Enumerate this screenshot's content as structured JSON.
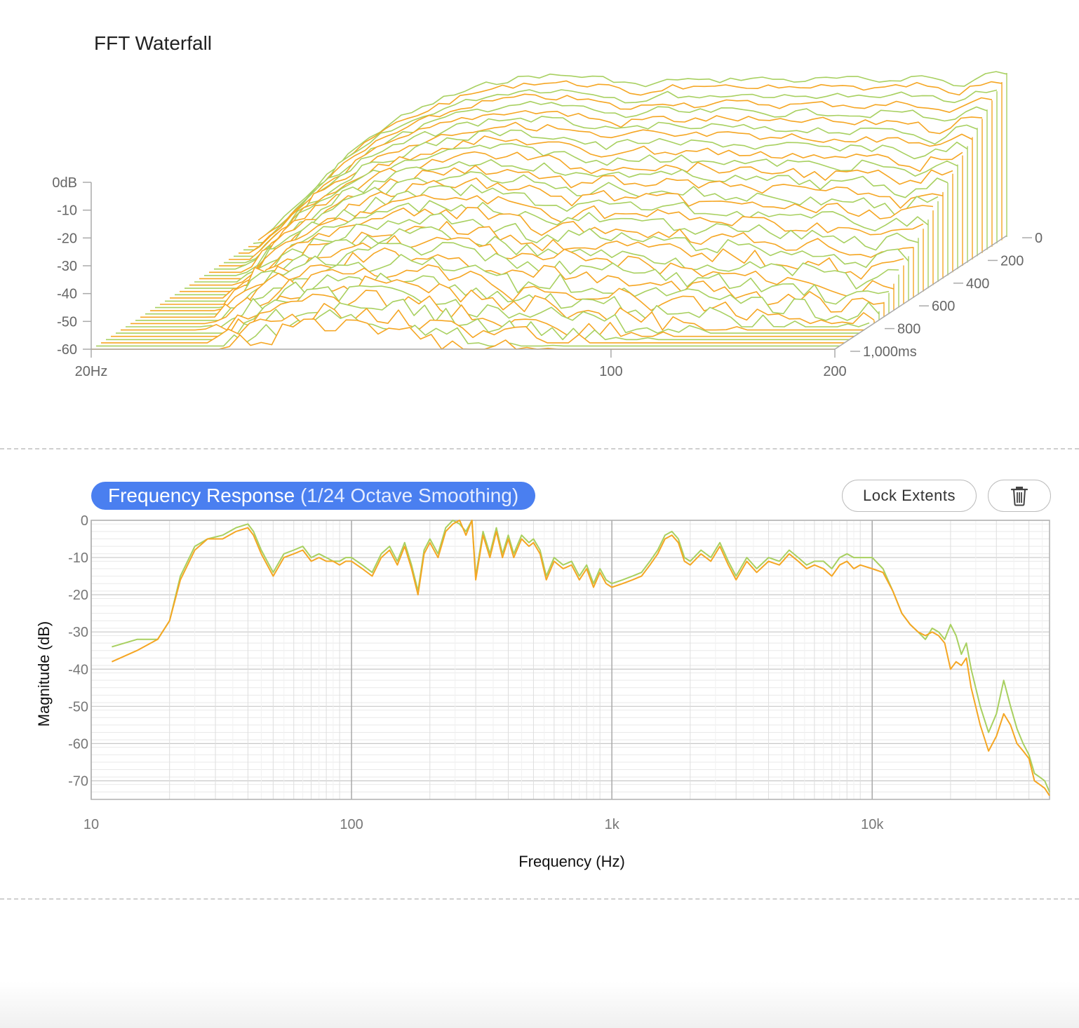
{
  "waterfall": {
    "title": "FFT Waterfall",
    "chart_data": {
      "type": "line",
      "title": "FFT Waterfall",
      "x_ticks": [
        "20Hz",
        "100",
        "200"
      ],
      "x_tick_values": [
        20,
        100,
        200
      ],
      "y_ticks": [
        "0dB",
        "-10",
        "-20",
        "-30",
        "-40",
        "-50",
        "-60"
      ],
      "y_tick_values": [
        0,
        -10,
        -20,
        -30,
        -40,
        -50,
        -60
      ],
      "z_ticks": [
        "0",
        "200",
        "400",
        "600",
        "800",
        "1,000ms"
      ],
      "z_tick_values": [
        0,
        200,
        400,
        600,
        800,
        1000
      ],
      "xlim": [
        20,
        200
      ],
      "ylim": [
        -60,
        0
      ],
      "zlim": [
        0,
        1000
      ],
      "slice_count": 36,
      "colors": [
        "#f5a623",
        "#a8d060"
      ],
      "base_spectrum": {
        "x": [
          20,
          23,
          26,
          30,
          35,
          40,
          46,
          52,
          58,
          65,
          72,
          80,
          88,
          96,
          105,
          115,
          125,
          135,
          145,
          155,
          165,
          175,
          185,
          192,
          196,
          200
        ],
        "y": [
          -60,
          -45,
          -30,
          -18,
          -10,
          -5,
          -2,
          -2,
          -3,
          -6,
          -3,
          -4,
          -3,
          -3,
          -4,
          -3,
          -3,
          -4,
          -3,
          -2,
          -4,
          -6,
          -2,
          -1,
          -1,
          -1
        ]
      }
    }
  },
  "frequency_response": {
    "title_main": "Frequency Response",
    "title_sub": "(1/24 Octave Smoothing)",
    "lock_button": "Lock Extents",
    "trash_icon": "trash-icon",
    "chart_data": {
      "type": "line",
      "xlabel": "Frequency (Hz)",
      "ylabel": "Magnitude (dB)",
      "x_scale": "log",
      "xlim": [
        10,
        48000
      ],
      "ylim": [
        -75,
        0
      ],
      "x_ticks": [
        "10",
        "100",
        "1k",
        "10k"
      ],
      "x_tick_values": [
        10,
        100,
        1000,
        10000
      ],
      "y_ticks": [
        "0",
        "-10",
        "-20",
        "-30",
        "-40",
        "-50",
        "-60",
        "-70"
      ],
      "y_tick_values": [
        0,
        -10,
        -20,
        -30,
        -40,
        -50,
        -60,
        -70
      ],
      "grid": true,
      "series": [
        {
          "color": "#f5a623",
          "x": [
            12,
            15,
            18,
            20,
            22,
            25,
            28,
            32,
            36,
            40,
            42,
            45,
            50,
            55,
            60,
            65,
            70,
            75,
            80,
            85,
            90,
            95,
            100,
            110,
            120,
            130,
            140,
            150,
            160,
            170,
            180,
            190,
            200,
            215,
            230,
            245,
            260,
            275,
            290,
            300,
            320,
            340,
            360,
            380,
            400,
            420,
            450,
            480,
            500,
            530,
            560,
            600,
            650,
            700,
            750,
            800,
            850,
            900,
            950,
            1000,
            1100,
            1200,
            1300,
            1400,
            1500,
            1600,
            1700,
            1800,
            1900,
            2000,
            2200,
            2400,
            2600,
            2800,
            3000,
            3300,
            3600,
            4000,
            4400,
            4800,
            5200,
            5600,
            6000,
            6500,
            7000,
            7500,
            8000,
            8500,
            9000,
            10000,
            11000,
            12000,
            13000,
            14000,
            15000,
            16000,
            17000,
            18000,
            19000,
            20000,
            21000,
            22000,
            23000,
            24000,
            26000,
            28000,
            30000,
            32000,
            34000,
            36000,
            38000,
            40000,
            42000,
            44000,
            46000,
            48000
          ],
          "y": [
            -38,
            -35,
            -32,
            -27,
            -16,
            -8,
            -5,
            -5,
            -3,
            -2,
            -4,
            -9,
            -15,
            -10,
            -9,
            -8,
            -11,
            -10,
            -11,
            -11,
            -12,
            -11,
            -11,
            -13,
            -15,
            -10,
            -8,
            -12,
            -7,
            -13,
            -20,
            -9,
            -6,
            -10,
            -3,
            -1,
            0,
            -4,
            0,
            -16,
            -4,
            -10,
            -3,
            -10,
            -5,
            -10,
            -5,
            -7,
            -6,
            -9,
            -16,
            -11,
            -13,
            -12,
            -16,
            -13,
            -18,
            -14,
            -17,
            -18,
            -17,
            -16,
            -15,
            -12,
            -9,
            -5,
            -4,
            -6,
            -11,
            -12,
            -9,
            -11,
            -7,
            -12,
            -16,
            -11,
            -14,
            -11,
            -12,
            -9,
            -11,
            -13,
            -12,
            -13,
            -15,
            -12,
            -11,
            -13,
            -12,
            -13,
            -14,
            -19,
            -25,
            -28,
            -30,
            -31,
            -30,
            -31,
            -33,
            -40,
            -38,
            -39,
            -37,
            -45,
            -55,
            -62,
            -58,
            -52,
            -55,
            -60,
            -62,
            -64,
            -70,
            -71,
            -72,
            -74
          ]
        },
        {
          "color": "#a8d060",
          "x": [
            12,
            15,
            18,
            20,
            22,
            25,
            28,
            32,
            36,
            40,
            42,
            45,
            50,
            55,
            60,
            65,
            70,
            75,
            80,
            85,
            90,
            95,
            100,
            110,
            120,
            130,
            140,
            150,
            160,
            170,
            180,
            190,
            200,
            215,
            230,
            245,
            260,
            275,
            290,
            300,
            320,
            340,
            360,
            380,
            400,
            420,
            450,
            480,
            500,
            530,
            560,
            600,
            650,
            700,
            750,
            800,
            850,
            900,
            950,
            1000,
            1100,
            1200,
            1300,
            1400,
            1500,
            1600,
            1700,
            1800,
            1900,
            2000,
            2200,
            2400,
            2600,
            2800,
            3000,
            3300,
            3600,
            4000,
            4400,
            4800,
            5200,
            5600,
            6000,
            6500,
            7000,
            7500,
            8000,
            8500,
            9000,
            10000,
            11000,
            12000,
            13000,
            14000,
            15000,
            16000,
            17000,
            18000,
            19000,
            20000,
            21000,
            22000,
            23000,
            24000,
            26000,
            28000,
            30000,
            32000,
            34000,
            36000,
            38000,
            40000,
            42000,
            44000,
            46000,
            48000
          ],
          "y": [
            -34,
            -32,
            -32,
            -27,
            -15,
            -7,
            -5,
            -4,
            -2,
            -1,
            -3,
            -8,
            -14,
            -9,
            -8,
            -7,
            -10,
            -9,
            -10,
            -11,
            -11,
            -10,
            -10,
            -12,
            -14,
            -9,
            -7,
            -11,
            -6,
            -12,
            -19,
            -8,
            -5,
            -9,
            -2,
            0,
            -1,
            -3,
            0,
            -15,
            -3,
            -9,
            -2,
            -9,
            -4,
            -9,
            -4,
            -6,
            -5,
            -8,
            -15,
            -10,
            -12,
            -11,
            -15,
            -12,
            -17,
            -13,
            -16,
            -17,
            -16,
            -15,
            -14,
            -11,
            -8,
            -4,
            -3,
            -5,
            -10,
            -11,
            -8,
            -10,
            -6,
            -11,
            -15,
            -10,
            -13,
            -10,
            -11,
            -8,
            -10,
            -12,
            -11,
            -11,
            -13,
            -10,
            -9,
            -10,
            -10,
            -10,
            -13,
            -19,
            -25,
            -28,
            -30,
            -32,
            -29,
            -30,
            -32,
            -28,
            -31,
            -36,
            -33,
            -40,
            -50,
            -57,
            -52,
            -43,
            -50,
            -56,
            -60,
            -63,
            -68,
            -69,
            -70,
            -73
          ]
        }
      ]
    }
  }
}
